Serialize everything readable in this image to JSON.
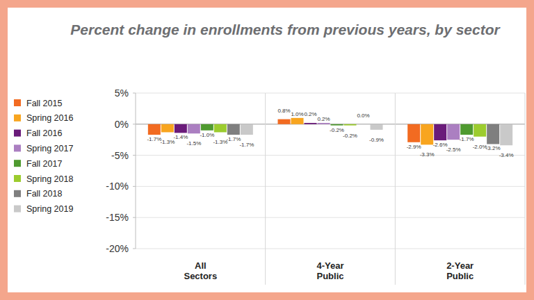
{
  "chart_data": {
    "type": "bar",
    "title": "Percent change in enrollments from previous years, by sector",
    "categories": [
      "All Sectors",
      "4-Year Public",
      "2-Year Public"
    ],
    "series": [
      {
        "name": "Fall 2015",
        "color": "#f26b21",
        "values": [
          -1.7,
          0.8,
          -2.9
        ],
        "value_labels": [
          "-1.7%",
          "0.8%",
          "-2.9%"
        ]
      },
      {
        "name": "Spring 2016",
        "color": "#f8a51f",
        "values": [
          -1.3,
          1.0,
          -3.3
        ],
        "value_labels": [
          "-1.3%",
          "1.0%",
          "-3.3%"
        ]
      },
      {
        "name": "Fall 2016",
        "color": "#6a1b7a",
        "values": [
          -1.4,
          0.2,
          -2.6
        ],
        "value_labels": [
          "-1.4%",
          "0.2%",
          "-2.6%"
        ]
      },
      {
        "name": "Spring 2017",
        "color": "#ab7fc1",
        "values": [
          -1.5,
          0.2,
          -2.5
        ],
        "value_labels": [
          "-1.5%",
          "0.2%",
          "-2.5%"
        ]
      },
      {
        "name": "Fall 2017",
        "color": "#4f9a2f",
        "values": [
          -1.0,
          -0.2,
          -1.7
        ],
        "value_labels": [
          "-1.0%",
          "-0.2%",
          "-1.7%"
        ]
      },
      {
        "name": "Spring 2018",
        "color": "#9ccc2e",
        "values": [
          -1.3,
          -0.2,
          -2.0
        ],
        "value_labels": [
          "-1.3%",
          "-0.2%",
          "-2.0%"
        ]
      },
      {
        "name": "Fall 2018",
        "color": "#7f7f7f",
        "values": [
          -1.7,
          0.0,
          -3.2
        ],
        "value_labels": [
          "-1.7%",
          "0.0%",
          "-3.2%"
        ]
      },
      {
        "name": "Spring 2019",
        "color": "#c9c9c9",
        "values": [
          -1.7,
          -0.9,
          -3.4
        ],
        "value_labels": [
          "-1.7%",
          "-0.9%",
          "-3.4%"
        ]
      }
    ],
    "ylim": [
      -20,
      5
    ],
    "yticks": [
      {
        "value": -20,
        "label": "-20%"
      },
      {
        "value": -15,
        "label": "-15%"
      },
      {
        "value": -10,
        "label": "-10%"
      },
      {
        "value": -5,
        "label": "-5%"
      },
      {
        "value": 0,
        "label": "0%"
      },
      {
        "value": 5,
        "label": "5%"
      }
    ],
    "grid": true,
    "legend": "left",
    "data_labels": true
  }
}
